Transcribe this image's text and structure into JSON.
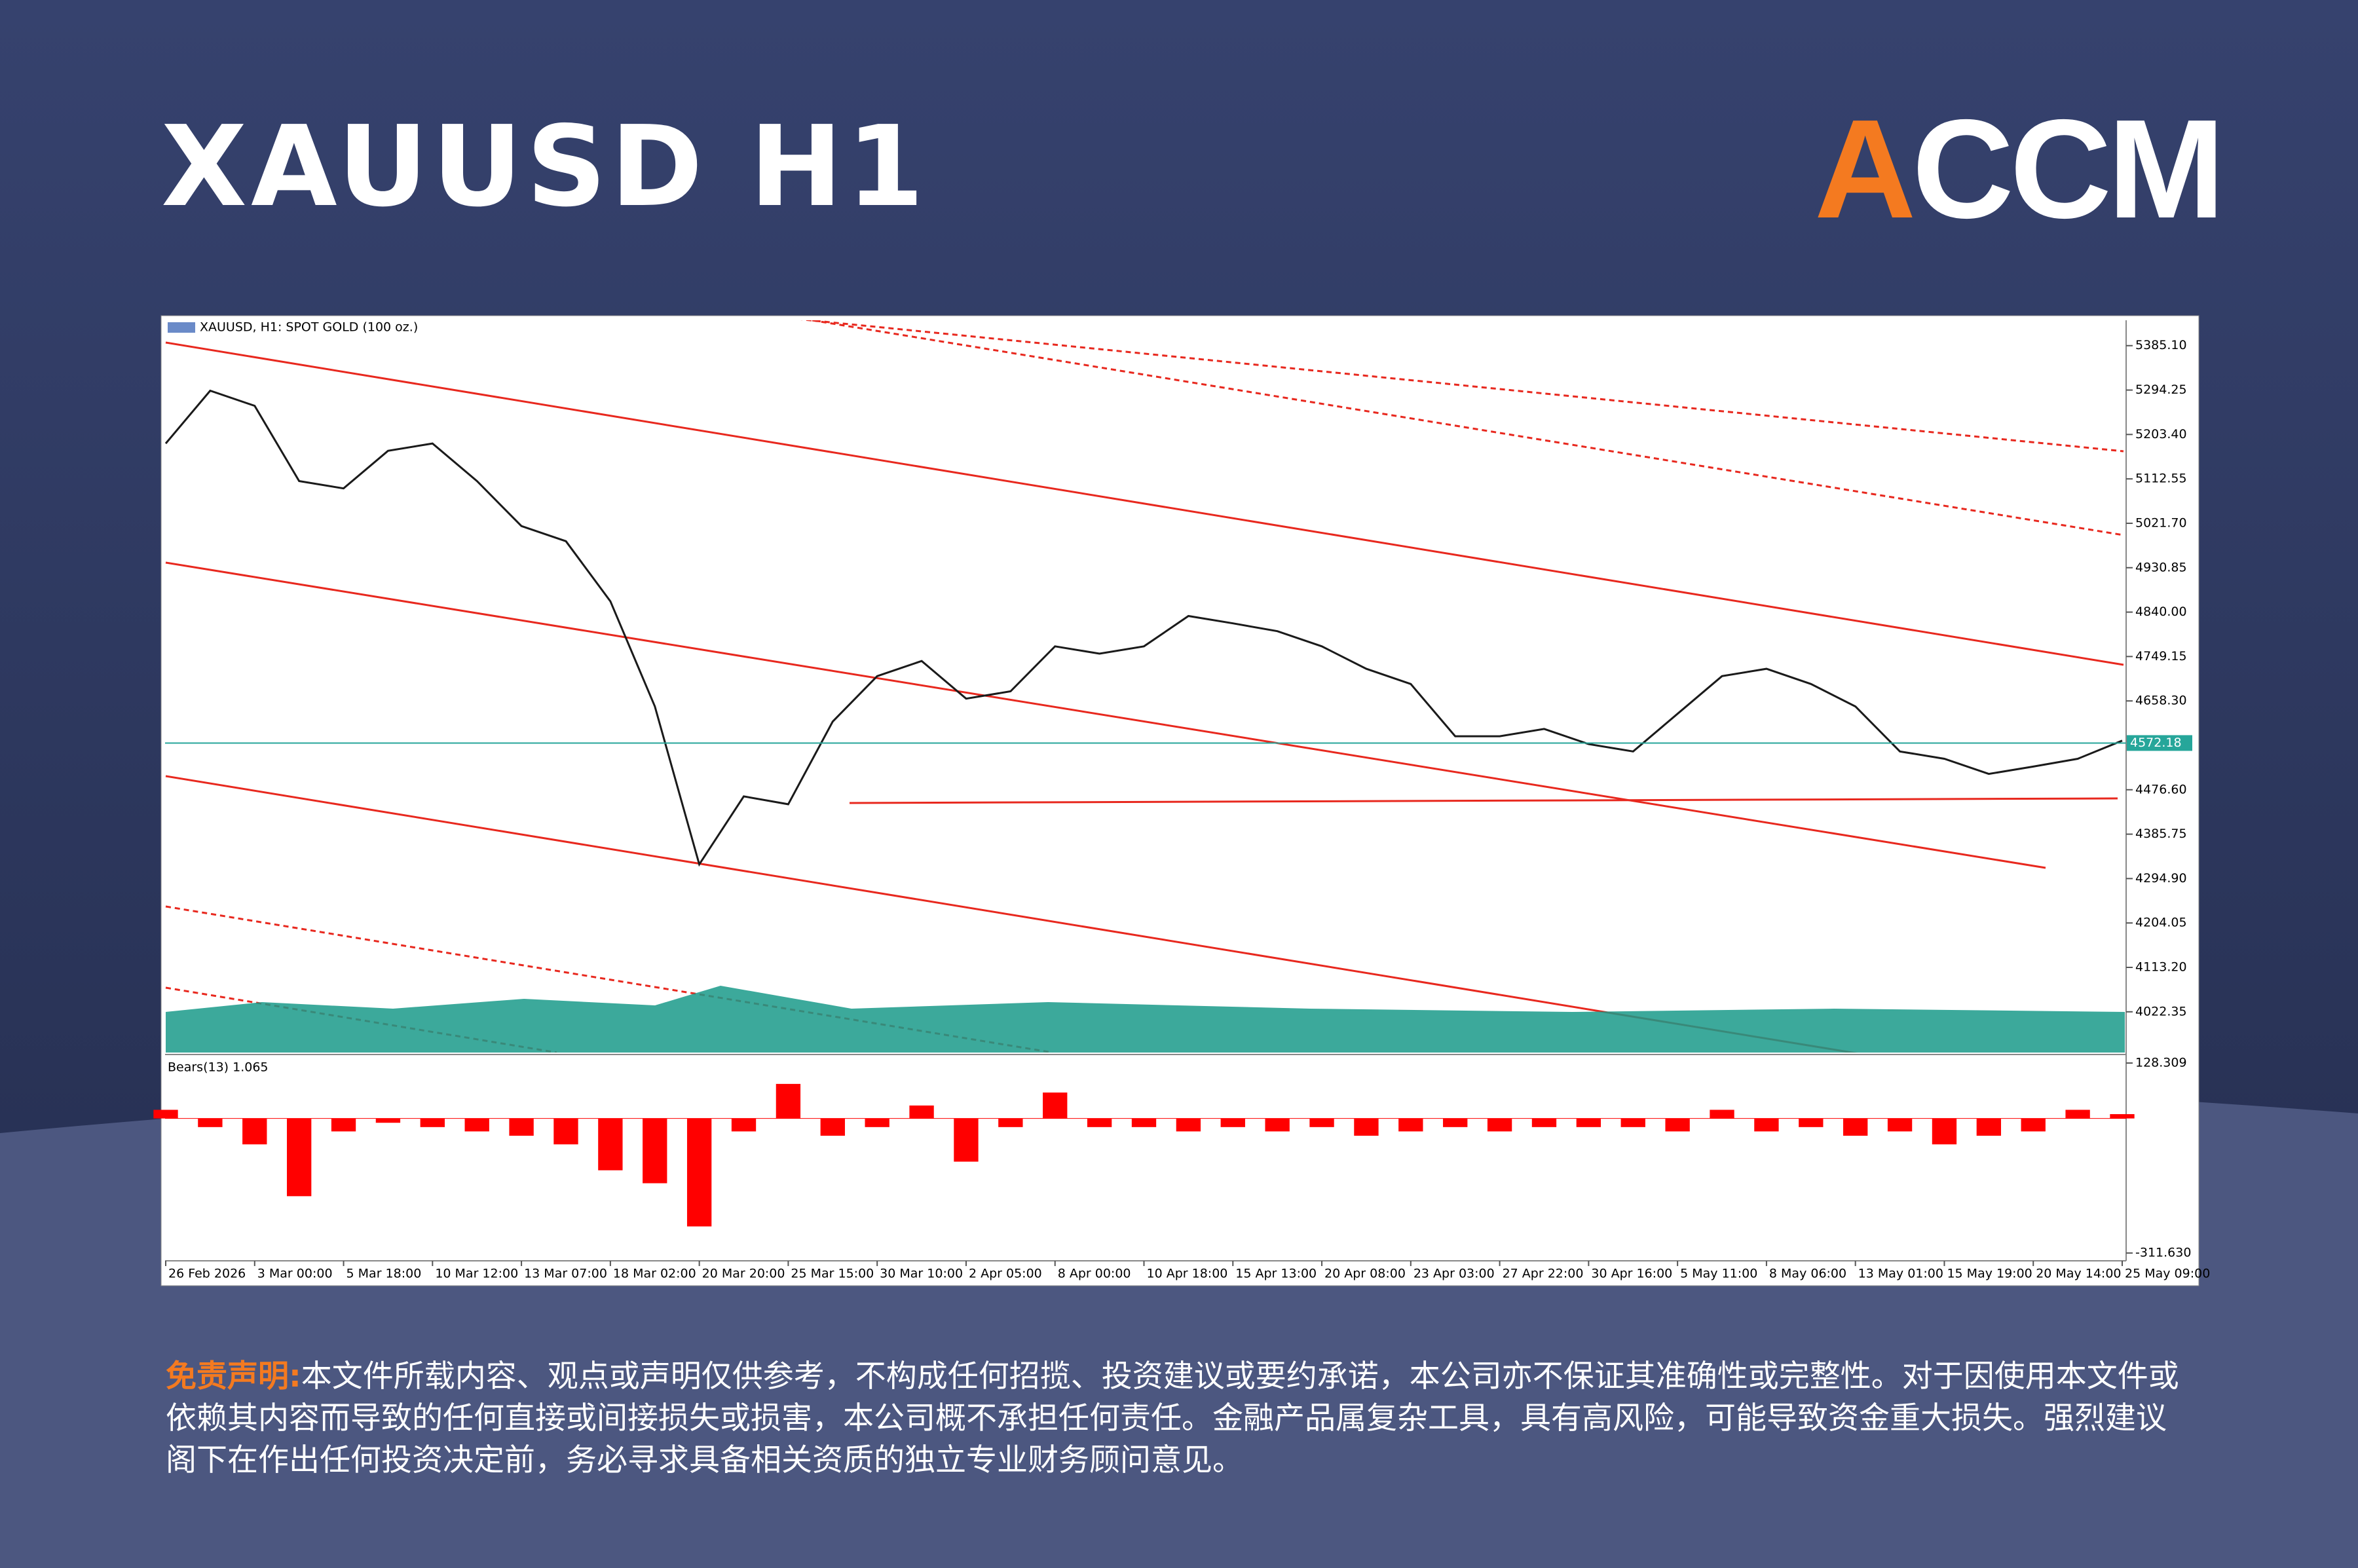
{
  "header": {
    "title": "XAUUSD H1",
    "logo": "ACCM"
  },
  "chart_data": [
    {
      "type": "line",
      "title": "XAUUSD, H1: SPOT GOLD (100 oz.)",
      "color": "#1a1a1a",
      "categories": [
        "26 Feb 2026",
        null,
        "3 Mar 00:00",
        null,
        "5 Mar 18:00",
        null,
        "10 Mar 12:00",
        null,
        "13 Mar 07:00",
        null,
        "18 Mar 02:00",
        null,
        "20 Mar 20:00",
        null,
        "25 Mar 15:00",
        null,
        "30 Mar 10:00",
        null,
        "2 Apr 05:00",
        null,
        "8 Apr 00:00",
        null,
        "10 Apr 18:00",
        null,
        "15 Apr 13:00",
        null,
        "20 Apr 08:00",
        null,
        "23 Apr 03:00",
        null,
        "27 Apr 22:00",
        null,
        "30 Apr 16:00",
        null,
        "5 May 11:00",
        null,
        "8 May 06:00",
        null,
        "13 May 01:00",
        null,
        "15 May 19:00",
        null,
        "20 May 14:00",
        null,
        "25 May 09:00"
      ],
      "values": [
        5185,
        5293,
        5262,
        5108,
        5093,
        5170,
        5185,
        5108,
        5016,
        4985,
        4862,
        4647,
        4324,
        4463,
        4447,
        4616,
        4709,
        4740,
        4663,
        4678,
        4770,
        4755,
        4770,
        4832,
        4817,
        4801,
        4770,
        4724,
        4693,
        4586,
        4586,
        4601,
        4570,
        4555,
        4632,
        4709,
        4724,
        4693,
        4647,
        4555,
        4540,
        4509,
        4524,
        4540,
        4577
      ],
      "last_price": 4572.18,
      "last_price_color": "#26a69a",
      "ylim": [
        3939,
        5437
      ],
      "yticks": [
        {
          "value": 5385.1,
          "label": "5385.10"
        },
        5294.25,
        {
          "value": 5203.4,
          "label": "5203.40"
        },
        5112.55,
        {
          "value": 5021.7,
          "label": "5021.70"
        },
        4930.85,
        {
          "value": 4840,
          "label": "4840.00"
        },
        4749.15,
        {
          "value": 4658.3,
          "label": "4658.30"
        },
        {
          "value": 4476.6,
          "label": "4476.60"
        },
        4385.75,
        {
          "value": 4294.9,
          "label": "4294.90"
        },
        4204.05,
        {
          "value": 4113.2,
          "label": "4113.20"
        },
        4022.35
      ]
    },
    {
      "type": "bar",
      "title": "Bears(13) 1.065",
      "color": "#ff0000",
      "values": [
        20,
        -20,
        -60,
        -180,
        -30,
        -10,
        -20,
        -30,
        -40,
        -60,
        -120,
        -150,
        -250,
        -30,
        80,
        -40,
        -20,
        30,
        -100,
        -20,
        60,
        -20,
        -20,
        -30,
        -20,
        -30,
        -20,
        -40,
        -30,
        -20,
        -30,
        -20,
        -20,
        -20,
        -30,
        20,
        -30,
        -20,
        -40,
        -30,
        -60,
        -40,
        -30,
        20,
        10
      ],
      "ylim": [
        -319,
        142
      ],
      "yticks": [
        128.309,
        {
          "value": -311.63,
          "label": "-311.630"
        }
      ]
    }
  ],
  "disclaimer": {
    "label": "免责声明:",
    "text": "本文件所载内容、观点或声明仅供参考，不构成任何招揽、投资建议或要约承诺，本公司亦不保证其准确性或完整性。对于因使用本文件或依赖其内容而导致的任何直接或间接损失或损害，本公司概不承担任何责任。金融产品属复杂工具，具有高风险，可能导致资金重大损失。强烈建议阁下在作出任何投资决定前，务必寻求具备相关资质的独立专业财务顾问意见。"
  }
}
